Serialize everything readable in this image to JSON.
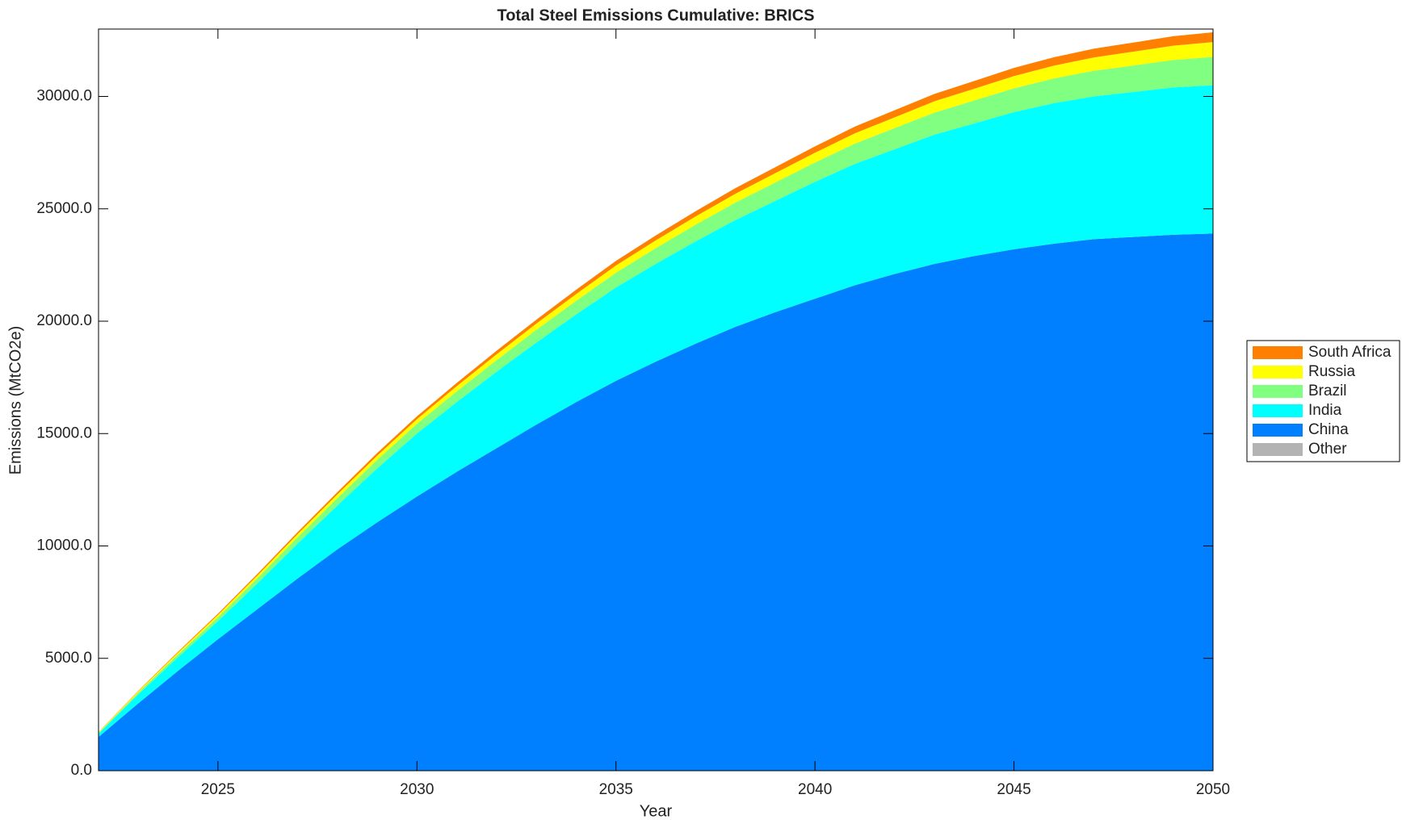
{
  "chart_data": {
    "type": "stacked-area",
    "title": "Total Steel Emissions Cumulative: BRICS",
    "x_label": "Year",
    "y_label": "Emissions (MtCO2e)",
    "x": [
      2022,
      2023,
      2024,
      2025,
      2026,
      2027,
      2028,
      2029,
      2030,
      2031,
      2032,
      2033,
      2034,
      2035,
      2036,
      2037,
      2038,
      2039,
      2040,
      2041,
      2042,
      2043,
      2044,
      2045,
      2046,
      2047,
      2048,
      2049,
      2050
    ],
    "series": [
      {
        "name": "Other",
        "color": "#b3b3b3",
        "values": [
          0,
          0,
          0,
          0,
          0,
          0,
          0,
          0,
          0,
          0,
          0,
          0,
          0,
          0,
          0,
          0,
          0,
          0,
          0,
          0,
          0,
          0,
          0,
          0,
          0,
          0,
          0,
          0,
          0
        ]
      },
      {
        "name": "China",
        "color": "#0080ff",
        "values": [
          1500,
          3000,
          4450,
          5850,
          7200,
          8550,
          9850,
          11050,
          12200,
          13300,
          14350,
          15400,
          16400,
          17350,
          18200,
          19000,
          19750,
          20400,
          21000,
          21600,
          22100,
          22550,
          22900,
          23200,
          23450,
          23650,
          23750,
          23850,
          23900
        ]
      },
      {
        "name": "India",
        "color": "#00ffff",
        "values": [
          150,
          400,
          600,
          800,
          1150,
          1550,
          1950,
          2400,
          2800,
          3100,
          3400,
          3650,
          3900,
          4150,
          4350,
          4550,
          4750,
          4950,
          5200,
          5400,
          5550,
          5750,
          5900,
          6100,
          6250,
          6350,
          6450,
          6550,
          6600
        ]
      },
      {
        "name": "Brazil",
        "color": "#80ff80",
        "values": [
          30,
          80,
          130,
          180,
          230,
          280,
          330,
          380,
          430,
          475,
          520,
          565,
          610,
          655,
          700,
          740,
          780,
          820,
          860,
          900,
          940,
          980,
          1020,
          1060,
          1100,
          1140,
          1180,
          1220,
          1260
        ]
      },
      {
        "name": "Russia",
        "color": "#ffff00",
        "values": [
          30,
          55,
          75,
          100,
          120,
          145,
          165,
          190,
          210,
          235,
          255,
          280,
          300,
          325,
          345,
          370,
          390,
          415,
          435,
          460,
          480,
          505,
          525,
          550,
          570,
          595,
          615,
          640,
          660
        ]
      },
      {
        "name": "South Africa",
        "color": "#ff8000",
        "values": [
          10,
          25,
          40,
          55,
          70,
          85,
          100,
          115,
          130,
          145,
          160,
          175,
          190,
          205,
          220,
          235,
          250,
          265,
          285,
          300,
          315,
          330,
          345,
          360,
          375,
          390,
          405,
          420,
          435
        ]
      }
    ],
    "xlim": [
      2022,
      2050
    ],
    "xticks": [
      2025,
      2030,
      2035,
      2040,
      2045,
      2050
    ],
    "ylim": [
      0,
      33000
    ],
    "yticks": [
      {
        "value": 0,
        "label": "0.0"
      },
      {
        "value": 5000,
        "label": "5000.0"
      },
      {
        "value": 10000,
        "label": "10000.0"
      },
      {
        "value": 15000,
        "label": "15000.0"
      },
      {
        "value": 20000,
        "label": "20000.0"
      },
      {
        "value": 25000,
        "label": "25000.0"
      },
      {
        "value": 30000,
        "label": "30000.0"
      }
    ],
    "legend": "right"
  }
}
